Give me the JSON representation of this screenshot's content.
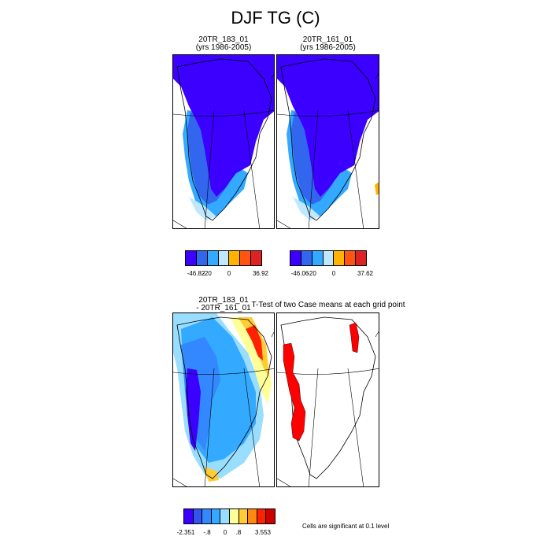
{
  "figure": {
    "title": "DJF TG (C)"
  },
  "panels": {
    "p1": {
      "line1": "20TR_183_01",
      "line2": "(yrs 1986-2005)"
    },
    "p2": {
      "line1": "20TR_161_01",
      "line2": "(yrs 1986-2005)"
    },
    "p3": {
      "line1": "20TR_183_01",
      "line2": "- 20TR_161_01"
    },
    "p4": {
      "line1": "T-Test of two Case means at each grid point"
    }
  },
  "colorbars": {
    "cb1": {
      "min": "-46.82",
      "t1": "-20",
      "t2": "0",
      "max": "36.92",
      "colors": [
        "#3b00ff",
        "#3366ee",
        "#33aaff",
        "#bfe8ff",
        "#ffb300",
        "#ff5511",
        "#dd2222"
      ]
    },
    "cb2": {
      "min": "-46.06",
      "t1": "-20",
      "t2": "0",
      "max": "37.62",
      "colors": [
        "#3b00ff",
        "#3366ee",
        "#33aaff",
        "#bfe8ff",
        "#ffb300",
        "#ff5511",
        "#dd2222"
      ]
    },
    "cb3": {
      "min": "-2.351",
      "t1": "-.8",
      "t2": "0",
      "t3": ".8",
      "max": "3.553",
      "colors": [
        "#3b00ff",
        "#3355ee",
        "#3388ff",
        "#33aaff",
        "#99ddff",
        "#ffff99",
        "#ffcc33",
        "#ff8811",
        "#ff2200",
        "#cc0000"
      ]
    }
  },
  "significance_note": "Cells are significant at 0.1 level",
  "colors": {
    "ice_cold": "#3b00ff",
    "mid_blue": "#3366ee",
    "light_blue": "#33aaff",
    "pale_blue": "#bfe8ff",
    "yellow": "#ffff99",
    "orange": "#ffb300",
    "red": "#ff2200",
    "significant": "#ff0000"
  }
}
